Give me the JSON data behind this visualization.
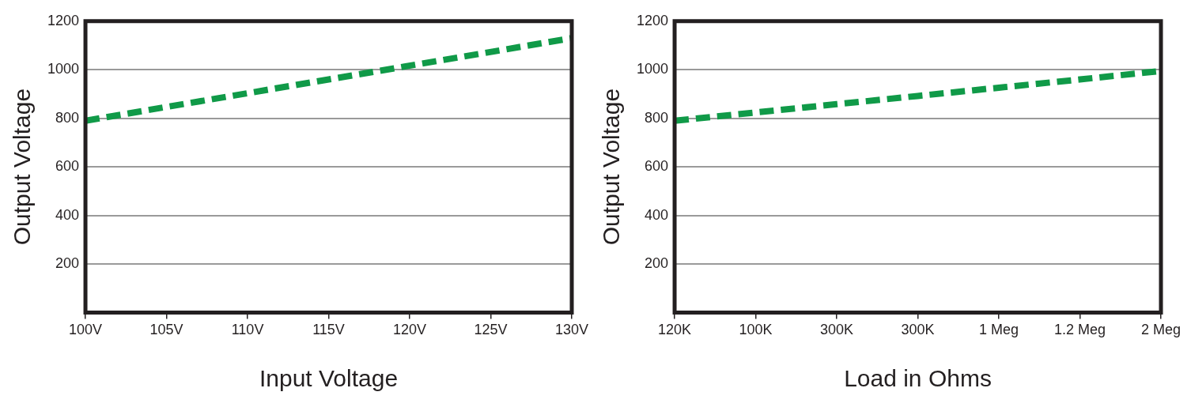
{
  "chart_data": [
    {
      "type": "line",
      "xlabel": "Input Voltage",
      "ylabel": "Output Voltage",
      "x": [
        100,
        130
      ],
      "series": [
        {
          "color": "#109a48",
          "values": [
            790,
            1130
          ]
        }
      ],
      "xlim": [
        100,
        130
      ],
      "xticks": [
        {
          "value": 100,
          "label": "100V"
        },
        {
          "value": 105,
          "label": "105V"
        },
        {
          "value": 110,
          "label": "110V"
        },
        {
          "value": 115,
          "label": "115V"
        },
        {
          "value": 120,
          "label": "120V"
        },
        {
          "value": 125,
          "label": "125V"
        },
        {
          "value": 130,
          "label": "130V"
        }
      ],
      "ylim": [
        0,
        1200
      ],
      "yticks": [
        200,
        400,
        600,
        800,
        1000,
        1200
      ],
      "grid": "y",
      "marker": "none",
      "line_style": "dashed"
    },
    {
      "type": "line",
      "xlabel": "Load in Ohms",
      "ylabel": "Output Voltage",
      "categories": [
        "120K",
        "100K",
        "300K",
        "300K",
        "1 Meg",
        "1.2 Meg",
        "2 Meg"
      ],
      "series": [
        {
          "color": "#109a48",
          "values": [
            790,
            824,
            858,
            892,
            926,
            960,
            995
          ]
        }
      ],
      "ylim": [
        0,
        1200
      ],
      "yticks": [
        200,
        400,
        600,
        800,
        1000,
        1200
      ],
      "grid": "y",
      "marker": "none",
      "line_style": "dashed"
    }
  ]
}
